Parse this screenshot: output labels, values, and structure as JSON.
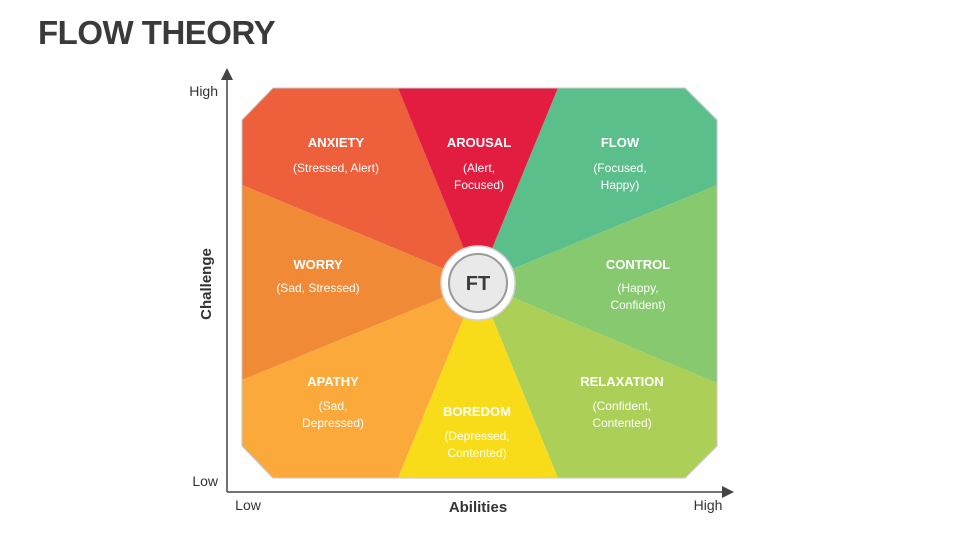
{
  "title": "FLOW THEORY",
  "axes": {
    "y_label": "Challenge",
    "y_high": "High",
    "y_low": "Low",
    "x_label": "Abilities",
    "x_low": "Low",
    "x_high": "High"
  },
  "center": {
    "label": "FT"
  },
  "segments": [
    {
      "title": "ANXIETY",
      "desc1": "(Stressed, Alert)",
      "desc2": "",
      "color": "#EE5F3C"
    },
    {
      "title": "AROUSAL",
      "desc1": "(Alert,",
      "desc2": "Focused)",
      "color": "#E21D3F"
    },
    {
      "title": "FLOW",
      "desc1": "(Focused,",
      "desc2": "Happy)",
      "color": "#5BBF8C"
    },
    {
      "title": "CONTROL",
      "desc1": "(Happy,",
      "desc2": "Confident)",
      "color": "#86C96E"
    },
    {
      "title": "RELAXATION",
      "desc1": "(Confident,",
      "desc2": "Contented)",
      "color": "#ABCF57"
    },
    {
      "title": "BOREDOM",
      "desc1": "(Depressed,",
      "desc2": "Contented)",
      "color": "#F8DC1A"
    },
    {
      "title": "APATHY",
      "desc1": "(Sad,",
      "desc2": "Depressed)",
      "color": "#FBA93A"
    },
    {
      "title": "WORRY",
      "desc1": "(Sad, Stressed)",
      "desc2": "",
      "color": "#F08A36"
    }
  ]
}
